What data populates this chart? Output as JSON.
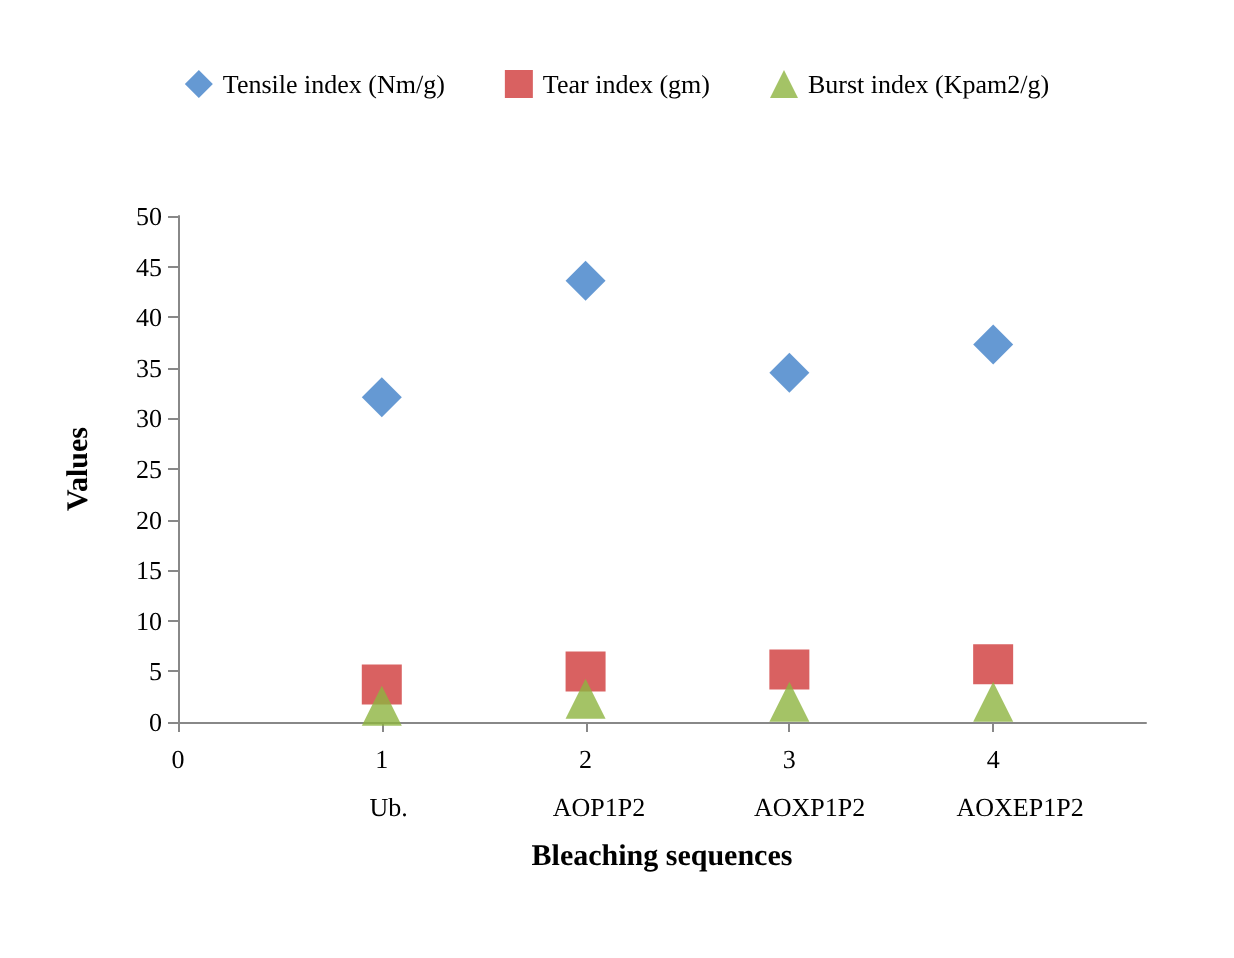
{
  "chart_data": {
    "type": "scatter",
    "xlabel": "Bleaching sequences",
    "ylabel": "Values",
    "x": [
      1,
      2,
      3,
      4
    ],
    "series": [
      {
        "name": "Tensile index (Nm/g)",
        "color": "#3f7fc8",
        "marker": "diamond",
        "values": [
          32.1,
          43.6,
          34.5,
          37.3
        ]
      },
      {
        "name": "Tear index (gm)",
        "color": "#d03a3a",
        "marker": "square",
        "values": [
          3.7,
          5.0,
          5.2,
          5.7
        ]
      },
      {
        "name": "Burst index (Kpam2/g)",
        "color": "#8db440",
        "marker": "triangle",
        "values": [
          1.6,
          2.3,
          2.0,
          2.0
        ]
      }
    ],
    "xlim": [
      0,
      4.75
    ],
    "xticks": [
      0,
      1,
      2,
      3,
      4
    ],
    "ylim": [
      0,
      50
    ],
    "yticks": [
      0,
      5,
      10,
      15,
      20,
      25,
      30,
      35,
      40,
      45,
      50
    ],
    "annotations": [
      "Ub.",
      "AOP1P2",
      "AOXP1P2",
      "AOXEP1P2"
    ],
    "grid": false,
    "legend": "top"
  }
}
